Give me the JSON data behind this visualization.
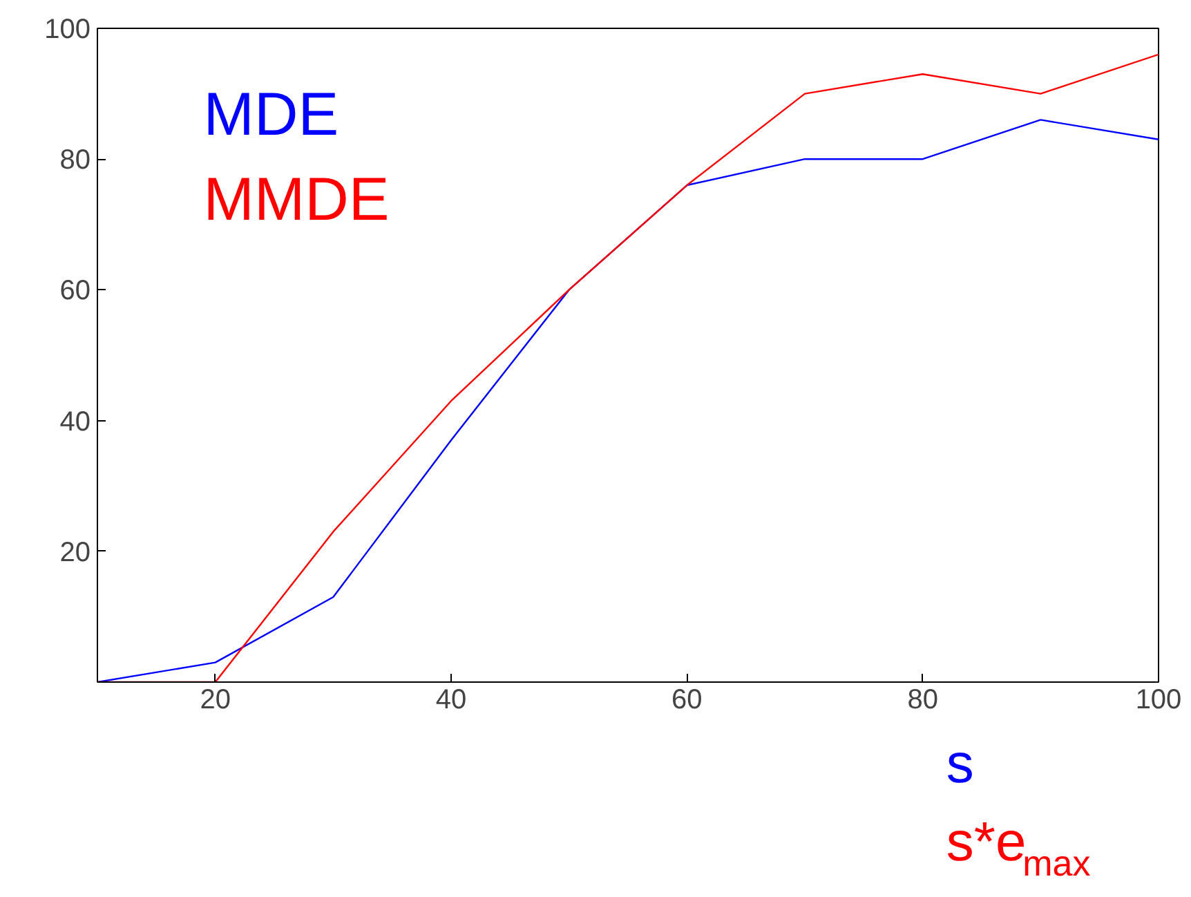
{
  "chart_data": {
    "type": "line",
    "x": [
      10,
      20,
      30,
      40,
      50,
      60,
      70,
      80,
      90,
      100
    ],
    "series": [
      {
        "name": "MDE",
        "color": "#0000ff",
        "values": [
          0,
          3,
          13,
          37,
          60,
          76,
          80,
          80,
          86,
          83
        ]
      },
      {
        "name": "MMDE",
        "color": "#ff0000",
        "values": [
          0,
          0,
          23,
          43,
          60,
          76,
          90,
          93,
          90,
          96
        ]
      }
    ],
    "xlabel": "s",
    "annotations": [
      "s*e$_{max}$"
    ],
    "xlim": [
      10,
      100
    ],
    "xticks": [
      20,
      40,
      60,
      80,
      100
    ],
    "ylim": [
      0,
      100
    ],
    "yticks": [
      20,
      40,
      60,
      80,
      100
    ],
    "grid": false,
    "legend": "top left",
    "marker": "none",
    "line_style": "solid"
  }
}
